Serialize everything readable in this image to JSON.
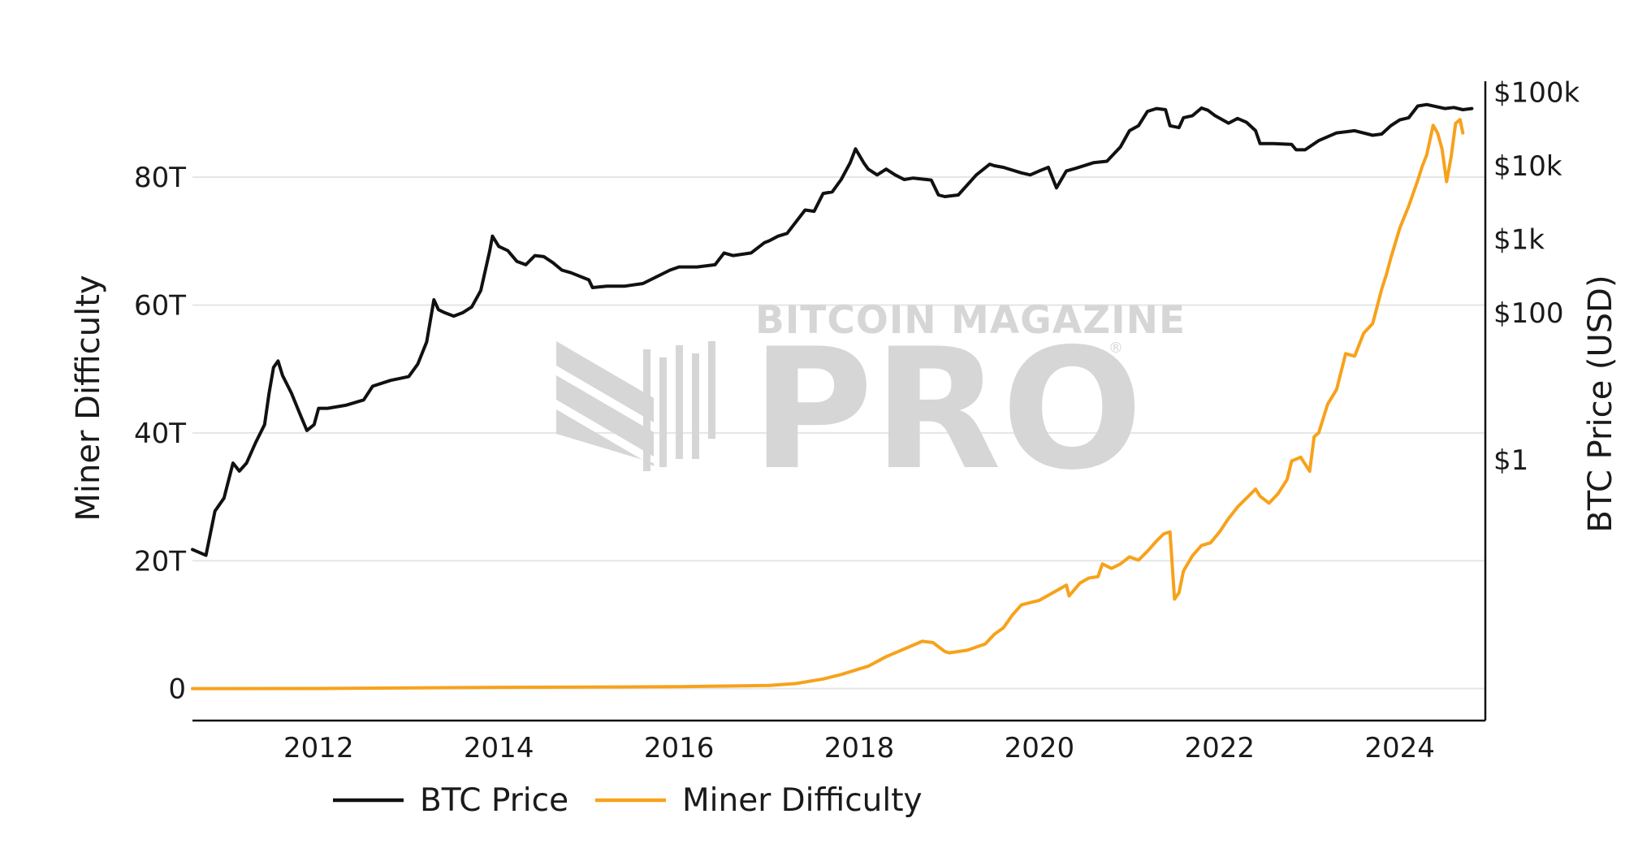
{
  "chart_data": {
    "type": "line",
    "title": "",
    "xlabel": "",
    "ylabel": "Miner Difficulty",
    "y2label": "BTC Price (USD)",
    "xlim": [
      2010.6,
      2024.95
    ],
    "ylim": [
      -5,
      95
    ],
    "y2_scale": "log",
    "y2lim_exponents": [
      -3.55,
      5.15
    ],
    "grid": "horizontal",
    "legend_position": "bottom",
    "x_ticks": [
      {
        "value": 2012,
        "label": "2012"
      },
      {
        "value": 2014,
        "label": "2014"
      },
      {
        "value": 2016,
        "label": "2016"
      },
      {
        "value": 2018,
        "label": "2018"
      },
      {
        "value": 2020,
        "label": "2020"
      },
      {
        "value": 2022,
        "label": "2022"
      },
      {
        "value": 2024,
        "label": "2024"
      }
    ],
    "y_ticks": [
      {
        "value": 0,
        "label": "0"
      },
      {
        "value": 20,
        "label": "20T"
      },
      {
        "value": 40,
        "label": "40T"
      },
      {
        "value": 60,
        "label": "60T"
      },
      {
        "value": 80,
        "label": "80T"
      }
    ],
    "y2_ticks": [
      {
        "value": 1,
        "label": "$1"
      },
      {
        "value": 100,
        "label": "$100"
      },
      {
        "value": 1000,
        "label": "$1k"
      },
      {
        "value": 10000,
        "label": "$10k"
      },
      {
        "value": 100000,
        "label": "$100k"
      }
    ],
    "series": [
      {
        "name": "BTC Price",
        "axis": "y2",
        "color": "#111111",
        "x": [
          2010.6,
          2010.75,
          2010.85,
          2010.95,
          2011.05,
          2011.12,
          2011.2,
          2011.3,
          2011.4,
          2011.45,
          2011.5,
          2011.55,
          2011.6,
          2011.7,
          2011.8,
          2011.87,
          2011.95,
          2012.0,
          2012.1,
          2012.3,
          2012.5,
          2012.6,
          2012.8,
          2013.0,
          2013.1,
          2013.2,
          2013.28,
          2013.33,
          2013.4,
          2013.5,
          2013.6,
          2013.7,
          2013.8,
          2013.9,
          2013.93,
          2014.0,
          2014.1,
          2014.2,
          2014.3,
          2014.4,
          2014.5,
          2014.6,
          2014.7,
          2014.8,
          2015.0,
          2015.04,
          2015.2,
          2015.4,
          2015.6,
          2015.8,
          2015.9,
          2016.0,
          2016.2,
          2016.4,
          2016.5,
          2016.6,
          2016.8,
          2016.95,
          2017.0,
          2017.1,
          2017.2,
          2017.4,
          2017.5,
          2017.6,
          2017.7,
          2017.8,
          2017.9,
          2017.96,
          2018.05,
          2018.1,
          2018.2,
          2018.3,
          2018.4,
          2018.5,
          2018.6,
          2018.8,
          2018.88,
          2018.95,
          2019.1,
          2019.3,
          2019.45,
          2019.5,
          2019.6,
          2019.8,
          2019.9,
          2020.0,
          2020.1,
          2020.19,
          2020.3,
          2020.4,
          2020.6,
          2020.75,
          2020.9,
          2021.0,
          2021.1,
          2021.2,
          2021.3,
          2021.4,
          2021.45,
          2021.55,
          2021.6,
          2021.7,
          2021.8,
          2021.87,
          2021.95,
          2022.1,
          2022.2,
          2022.3,
          2022.4,
          2022.45,
          2022.6,
          2022.8,
          2022.85,
          2022.95,
          2023.1,
          2023.3,
          2023.5,
          2023.7,
          2023.8,
          2023.9,
          2024.0,
          2024.1,
          2024.2,
          2024.3,
          2024.5,
          2024.6,
          2024.7,
          2024.8
        ],
        "values": [
          0.06,
          0.05,
          0.2,
          0.3,
          0.9,
          0.7,
          0.9,
          1.7,
          3,
          8,
          18,
          22,
          14,
          8,
          4,
          2.5,
          3,
          5,
          5,
          5.5,
          6.5,
          10,
          12,
          13.5,
          20,
          40,
          150,
          110,
          100,
          90,
          100,
          120,
          200,
          700,
          1100,
          800,
          700,
          500,
          450,
          600,
          580,
          480,
          380,
          350,
          280,
          220,
          230,
          230,
          250,
          330,
          380,
          420,
          420,
          450,
          650,
          600,
          650,
          900,
          950,
          1100,
          1200,
          2500,
          2400,
          4200,
          4400,
          6500,
          11000,
          17000,
          11000,
          9000,
          7500,
          9000,
          7500,
          6500,
          6800,
          6400,
          4000,
          3800,
          4000,
          7500,
          10500,
          10000,
          9500,
          8000,
          7500,
          8500,
          9500,
          5000,
          8500,
          9200,
          11000,
          11500,
          18000,
          30000,
          35000,
          55000,
          60000,
          58000,
          35000,
          33000,
          45000,
          48000,
          61000,
          57000,
          48000,
          38000,
          44000,
          39000,
          30000,
          20000,
          20000,
          19500,
          16500,
          16500,
          22000,
          28000,
          30000,
          26000,
          27000,
          35000,
          42000,
          45000,
          65000,
          68000,
          60000,
          62000,
          58000,
          60000
        ]
      },
      {
        "name": "Miner Difficulty",
        "axis": "y",
        "color": "#f7a21b",
        "x": [
          2010.6,
          2012.0,
          2014.0,
          2016.0,
          2016.5,
          2017.0,
          2017.3,
          2017.6,
          2017.8,
          2017.96,
          2018.1,
          2018.3,
          2018.5,
          2018.7,
          2018.82,
          2018.95,
          2019.0,
          2019.2,
          2019.4,
          2019.5,
          2019.6,
          2019.7,
          2019.8,
          2020.0,
          2020.15,
          2020.3,
          2020.33,
          2020.45,
          2020.55,
          2020.65,
          2020.7,
          2020.8,
          2020.9,
          2021.0,
          2021.1,
          2021.2,
          2021.3,
          2021.38,
          2021.45,
          2021.5,
          2021.55,
          2021.6,
          2021.7,
          2021.8,
          2021.9,
          2022.0,
          2022.1,
          2022.2,
          2022.3,
          2022.4,
          2022.45,
          2022.55,
          2022.65,
          2022.75,
          2022.8,
          2022.9,
          2023.0,
          2023.05,
          2023.1,
          2023.2,
          2023.3,
          2023.4,
          2023.5,
          2023.6,
          2023.7,
          2023.8,
          2023.85,
          2023.9,
          2024.0,
          2024.1,
          2024.2,
          2024.25,
          2024.3,
          2024.37,
          2024.42,
          2024.47,
          2024.52,
          2024.57,
          2024.62,
          2024.67,
          2024.7
        ],
        "values": [
          0,
          0.02,
          0.2,
          0.3,
          0.4,
          0.5,
          0.8,
          1.5,
          2.2,
          2.9,
          3.5,
          5.0,
          6.2,
          7.4,
          7.2,
          5.8,
          5.6,
          6.0,
          7.0,
          8.5,
          9.5,
          11.5,
          13.1,
          13.8,
          15.0,
          16.2,
          14.5,
          16.5,
          17.3,
          17.5,
          19.5,
          18.8,
          19.5,
          20.6,
          20.1,
          21.5,
          23.1,
          24.2,
          24.5,
          14.0,
          15.0,
          18.4,
          20.8,
          22.4,
          22.8,
          24.5,
          26.6,
          28.4,
          29.8,
          31.2,
          30.1,
          29.0,
          30.5,
          32.7,
          35.6,
          36.2,
          34.0,
          39.4,
          40.0,
          44.5,
          46.8,
          52.4,
          52.0,
          55.6,
          57.1,
          62.5,
          64.7,
          67.3,
          72.0,
          75.5,
          79.5,
          81.7,
          83.5,
          88.1,
          86.9,
          84.4,
          79.3,
          83.1,
          88.4,
          89.0,
          86.9
        ]
      }
    ]
  },
  "watermark": {
    "line1": "BITCOIN MAGAZINE",
    "line2": "PRO",
    "mark": "®"
  }
}
